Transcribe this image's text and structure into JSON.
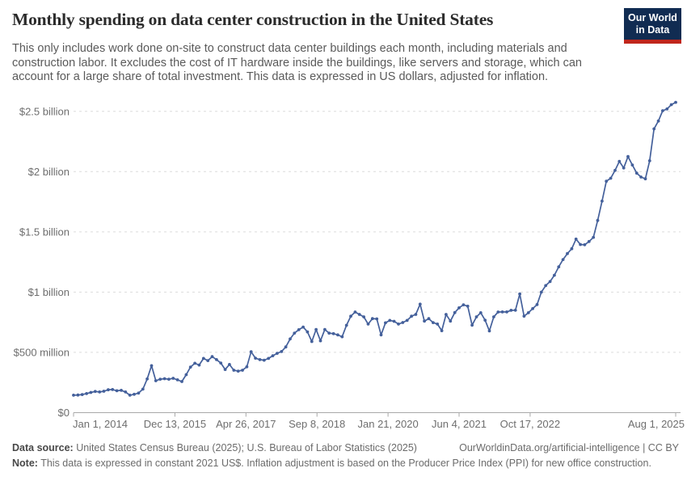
{
  "header": {
    "title": "Monthly spending on data center construction in the United States",
    "subtitle": "This only includes work done on-site to construct data center buildings each month, including materials and construction labor. It excludes the cost of IT hardware inside the buildings, like servers and storage, which can account for a large share of total investment. This data is expressed in US dollars, adjusted for inflation.",
    "logo": {
      "line1": "Our World",
      "line2": "in Data"
    }
  },
  "chart_data": {
    "type": "line",
    "title": "Monthly spending on data center construction in the United States",
    "x_start": "Jan 2014",
    "x_end": "Aug 2025",
    "x_interval": "monthly",
    "unit": "US dollars, constant 2021",
    "ylim_millions": [
      0,
      2600
    ],
    "grid": "dashed horizontal gridlines",
    "legend": "none",
    "line_color": "#44609b",
    "y_ticks": [
      {
        "value_millions": 0,
        "label": "$0"
      },
      {
        "value_millions": 500,
        "label": "$500 million"
      },
      {
        "value_millions": 1000,
        "label": "$1 billion"
      },
      {
        "value_millions": 1500,
        "label": "$1.5 billion"
      },
      {
        "value_millions": 2000,
        "label": "$2 billion"
      },
      {
        "value_millions": 2500,
        "label": "$2.5 billion"
      }
    ],
    "x_ticks": [
      {
        "label": "Jan 1, 2014",
        "month_offset": 0
      },
      {
        "label": "Dec 13, 2015",
        "month_offset": 23.4
      },
      {
        "label": "Apr 26, 2017",
        "month_offset": 39.8
      },
      {
        "label": "Sep 8, 2018",
        "month_offset": 56.2
      },
      {
        "label": "Jan 21, 2020",
        "month_offset": 72.6
      },
      {
        "label": "Jun 4, 2021",
        "month_offset": 89.0
      },
      {
        "label": "Oct 17, 2022",
        "month_offset": 105.4
      },
      {
        "label": "Aug 1, 2025",
        "month_offset": 139
      }
    ],
    "series": [
      {
        "name": "United States",
        "color": "#44609b",
        "values_millions": [
          145,
          146,
          150,
          158,
          168,
          176,
          172,
          178,
          190,
          192,
          182,
          185,
          172,
          145,
          152,
          162,
          195,
          280,
          390,
          265,
          278,
          282,
          278,
          285,
          272,
          258,
          315,
          378,
          410,
          395,
          450,
          432,
          465,
          440,
          412,
          358,
          400,
          352,
          345,
          352,
          380,
          505,
          452,
          440,
          435,
          450,
          472,
          492,
          507,
          545,
          612,
          660,
          688,
          710,
          670,
          590,
          690,
          596,
          690,
          660,
          655,
          645,
          630,
          725,
          800,
          835,
          815,
          795,
          735,
          780,
          778,
          645,
          745,
          765,
          758,
          735,
          748,
          765,
          800,
          815,
          900,
          760,
          780,
          747,
          735,
          680,
          815,
          760,
          830,
          870,
          895,
          883,
          726,
          795,
          829,
          767,
          678,
          795,
          835,
          836,
          836,
          849,
          850,
          985,
          801,
          829,
          863,
          897,
          1000,
          1054,
          1088,
          1140,
          1210,
          1270,
          1320,
          1360,
          1440,
          1395,
          1393,
          1420,
          1455,
          1595,
          1755,
          1920,
          1945,
          2010,
          2085,
          2030,
          2125,
          2055,
          1987,
          1955,
          1940,
          2090,
          2355,
          2420,
          2505,
          2520,
          2555,
          2575
        ]
      }
    ]
  },
  "footer": {
    "source_label": "Data source:",
    "source_text": " United States Census Bureau (2025); U.S. Bureau of Labor Statistics (2025)",
    "link": "OurWorldinData.org/artificial-intelligence | CC BY",
    "note_label": "Note:",
    "note_text": " This data is expressed in constant 2021 US$. Inflation adjustment is based on the Producer Price Index (PPI) for new office construction."
  }
}
